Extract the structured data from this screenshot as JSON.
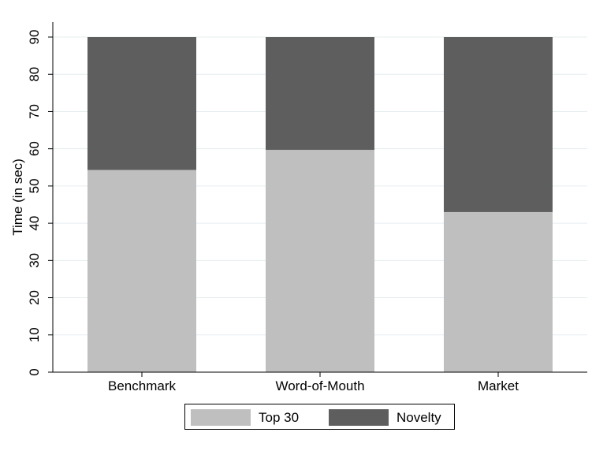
{
  "chart_data": {
    "type": "bar",
    "stacked": true,
    "categories": [
      "Benchmark",
      "Word-of-Mouth",
      "Market"
    ],
    "series": [
      {
        "name": "Top 30",
        "color": "#bfbfbf",
        "values": [
          54.3,
          59.7,
          43
        ]
      },
      {
        "name": "Novelty",
        "color": "#5e5e5e",
        "values": [
          35.7,
          30.3,
          47
        ]
      }
    ],
    "title": "",
    "xlabel": "",
    "ylabel": "Time (in sec)",
    "ylim": [
      0,
      90
    ],
    "yticks": [
      0,
      10,
      20,
      30,
      40,
      50,
      60,
      70,
      80,
      90
    ],
    "grid": true,
    "legend_position": "bottom"
  }
}
